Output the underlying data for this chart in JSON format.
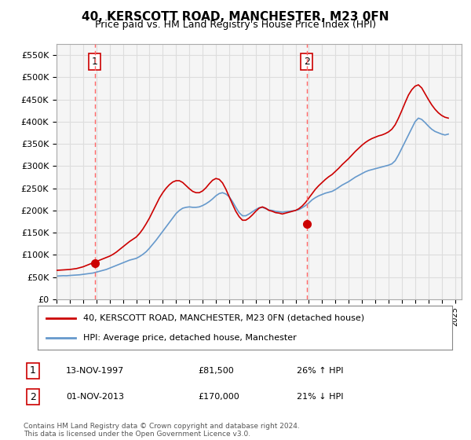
{
  "title": "40, KERSCOTT ROAD, MANCHESTER, M23 0FN",
  "subtitle": "Price paid vs. HM Land Registry's House Price Index (HPI)",
  "legend_line1": "40, KERSCOTT ROAD, MANCHESTER, M23 0FN (detached house)",
  "legend_line2": "HPI: Average price, detached house, Manchester",
  "footnote": "Contains HM Land Registry data © Crown copyright and database right 2024.\nThis data is licensed under the Open Government Licence v3.0.",
  "transaction1_label": "1",
  "transaction1_date": "13-NOV-1997",
  "transaction1_price": "£81,500",
  "transaction1_hpi": "26% ↑ HPI",
  "transaction2_label": "2",
  "transaction2_date": "01-NOV-2013",
  "transaction2_price": "£170,000",
  "transaction2_hpi": "21% ↓ HPI",
  "marker1_x": 1997.87,
  "marker1_y": 81500,
  "marker2_x": 2013.83,
  "marker2_y": 170000,
  "vline1_x": 1997.87,
  "vline2_x": 2013.83,
  "ylim": [
    0,
    575000
  ],
  "xlim_start": 1995.0,
  "xlim_end": 2025.5,
  "yticks": [
    0,
    50000,
    100000,
    150000,
    200000,
    250000,
    300000,
    350000,
    400000,
    450000,
    500000,
    550000
  ],
  "xticks": [
    1995,
    1996,
    1997,
    1998,
    1999,
    2000,
    2001,
    2002,
    2003,
    2004,
    2005,
    2006,
    2007,
    2008,
    2009,
    2010,
    2011,
    2012,
    2013,
    2014,
    2015,
    2016,
    2017,
    2018,
    2019,
    2020,
    2021,
    2022,
    2023,
    2024,
    2025
  ],
  "property_color": "#cc0000",
  "hpi_color": "#6699cc",
  "vline_color": "#ff6666",
  "marker_color": "#cc0000",
  "grid_color": "#dddddd",
  "bg_color": "#ffffff",
  "plot_bg_color": "#f5f5f5",
  "hpi_data": {
    "x": [
      1995.0,
      1995.25,
      1995.5,
      1995.75,
      1996.0,
      1996.25,
      1996.5,
      1996.75,
      1997.0,
      1997.25,
      1997.5,
      1997.75,
      1998.0,
      1998.25,
      1998.5,
      1998.75,
      1999.0,
      1999.25,
      1999.5,
      1999.75,
      2000.0,
      2000.25,
      2000.5,
      2000.75,
      2001.0,
      2001.25,
      2001.5,
      2001.75,
      2002.0,
      2002.25,
      2002.5,
      2002.75,
      2003.0,
      2003.25,
      2003.5,
      2003.75,
      2004.0,
      2004.25,
      2004.5,
      2004.75,
      2005.0,
      2005.25,
      2005.5,
      2005.75,
      2006.0,
      2006.25,
      2006.5,
      2006.75,
      2007.0,
      2007.25,
      2007.5,
      2007.75,
      2008.0,
      2008.25,
      2008.5,
      2008.75,
      2009.0,
      2009.25,
      2009.5,
      2009.75,
      2010.0,
      2010.25,
      2010.5,
      2010.75,
      2011.0,
      2011.25,
      2011.5,
      2011.75,
      2012.0,
      2012.25,
      2012.5,
      2012.75,
      2013.0,
      2013.25,
      2013.5,
      2013.75,
      2014.0,
      2014.25,
      2014.5,
      2014.75,
      2015.0,
      2015.25,
      2015.5,
      2015.75,
      2016.0,
      2016.25,
      2016.5,
      2016.75,
      2017.0,
      2017.25,
      2017.5,
      2017.75,
      2018.0,
      2018.25,
      2018.5,
      2018.75,
      2019.0,
      2019.25,
      2019.5,
      2019.75,
      2020.0,
      2020.25,
      2020.5,
      2020.75,
      2021.0,
      2021.25,
      2021.5,
      2021.75,
      2022.0,
      2022.25,
      2022.5,
      2022.75,
      2023.0,
      2023.25,
      2023.5,
      2023.75,
      2024.0,
      2024.25,
      2024.5
    ],
    "y": [
      52000,
      52500,
      53000,
      52800,
      53500,
      54000,
      54500,
      55000,
      56000,
      57000,
      58000,
      59000,
      61000,
      63000,
      65000,
      67000,
      70000,
      73000,
      76000,
      79000,
      82000,
      85000,
      88000,
      90000,
      92000,
      96000,
      101000,
      107000,
      115000,
      124000,
      133000,
      143000,
      153000,
      163000,
      173000,
      183000,
      193000,
      200000,
      205000,
      207000,
      208000,
      207000,
      207000,
      208000,
      211000,
      215000,
      220000,
      226000,
      233000,
      238000,
      240000,
      237000,
      231000,
      220000,
      207000,
      195000,
      188000,
      188000,
      192000,
      197000,
      202000,
      206000,
      207000,
      204000,
      201000,
      200000,
      198000,
      197000,
      196000,
      197000,
      198000,
      199000,
      200000,
      202000,
      206000,
      211000,
      217000,
      224000,
      229000,
      233000,
      236000,
      239000,
      241000,
      243000,
      247000,
      252000,
      257000,
      261000,
      265000,
      270000,
      275000,
      279000,
      283000,
      287000,
      290000,
      292000,
      294000,
      296000,
      298000,
      300000,
      302000,
      305000,
      312000,
      325000,
      340000,
      355000,
      370000,
      385000,
      400000,
      408000,
      405000,
      398000,
      390000,
      383000,
      378000,
      375000,
      372000,
      370000,
      372000
    ]
  },
  "property_data": {
    "x": [
      1995.0,
      1995.25,
      1995.5,
      1995.75,
      1996.0,
      1996.25,
      1996.5,
      1996.75,
      1997.0,
      1997.25,
      1997.5,
      1997.75,
      1998.0,
      1998.25,
      1998.5,
      1998.75,
      1999.0,
      1999.25,
      1999.5,
      1999.75,
      2000.0,
      2000.25,
      2000.5,
      2000.75,
      2001.0,
      2001.25,
      2001.5,
      2001.75,
      2002.0,
      2002.25,
      2002.5,
      2002.75,
      2003.0,
      2003.25,
      2003.5,
      2003.75,
      2004.0,
      2004.25,
      2004.5,
      2004.75,
      2005.0,
      2005.25,
      2005.5,
      2005.75,
      2006.0,
      2006.25,
      2006.5,
      2006.75,
      2007.0,
      2007.25,
      2007.5,
      2007.75,
      2008.0,
      2008.25,
      2008.5,
      2008.75,
      2009.0,
      2009.25,
      2009.5,
      2009.75,
      2010.0,
      2010.25,
      2010.5,
      2010.75,
      2011.0,
      2011.25,
      2011.5,
      2011.75,
      2012.0,
      2012.25,
      2012.5,
      2012.75,
      2013.0,
      2013.25,
      2013.5,
      2013.75,
      2014.0,
      2014.25,
      2014.5,
      2014.75,
      2015.0,
      2015.25,
      2015.5,
      2015.75,
      2016.0,
      2016.25,
      2016.5,
      2016.75,
      2017.0,
      2017.25,
      2017.5,
      2017.75,
      2018.0,
      2018.25,
      2018.5,
      2018.75,
      2019.0,
      2019.25,
      2019.5,
      2019.75,
      2020.0,
      2020.25,
      2020.5,
      2020.75,
      2021.0,
      2021.25,
      2021.5,
      2021.75,
      2022.0,
      2022.25,
      2022.5,
      2022.75,
      2023.0,
      2023.25,
      2023.5,
      2023.75,
      2024.0,
      2024.25,
      2024.5
    ],
    "y": [
      65000,
      65500,
      66000,
      66500,
      67000,
      68000,
      69000,
      71000,
      73000,
      76000,
      79000,
      82000,
      85000,
      88000,
      91000,
      94000,
      97000,
      101000,
      106000,
      112000,
      118000,
      124000,
      130000,
      135000,
      140000,
      148000,
      158000,
      170000,
      183000,
      198000,
      213000,
      228000,
      240000,
      250000,
      258000,
      264000,
      267000,
      267000,
      263000,
      256000,
      249000,
      243000,
      240000,
      240000,
      244000,
      251000,
      260000,
      268000,
      272000,
      270000,
      262000,
      248000,
      231000,
      214000,
      198000,
      186000,
      178000,
      178000,
      183000,
      190000,
      198000,
      205000,
      208000,
      205000,
      200000,
      198000,
      195000,
      194000,
      192000,
      194000,
      196000,
      198000,
      200000,
      204000,
      210000,
      218000,
      228000,
      238000,
      248000,
      256000,
      263000,
      270000,
      276000,
      281000,
      288000,
      295000,
      303000,
      310000,
      317000,
      325000,
      333000,
      340000,
      347000,
      353000,
      358000,
      362000,
      365000,
      368000,
      370000,
      373000,
      377000,
      383000,
      393000,
      408000,
      425000,
      443000,
      460000,
      472000,
      480000,
      483000,
      476000,
      463000,
      450000,
      438000,
      428000,
      420000,
      414000,
      410000,
      408000
    ]
  }
}
